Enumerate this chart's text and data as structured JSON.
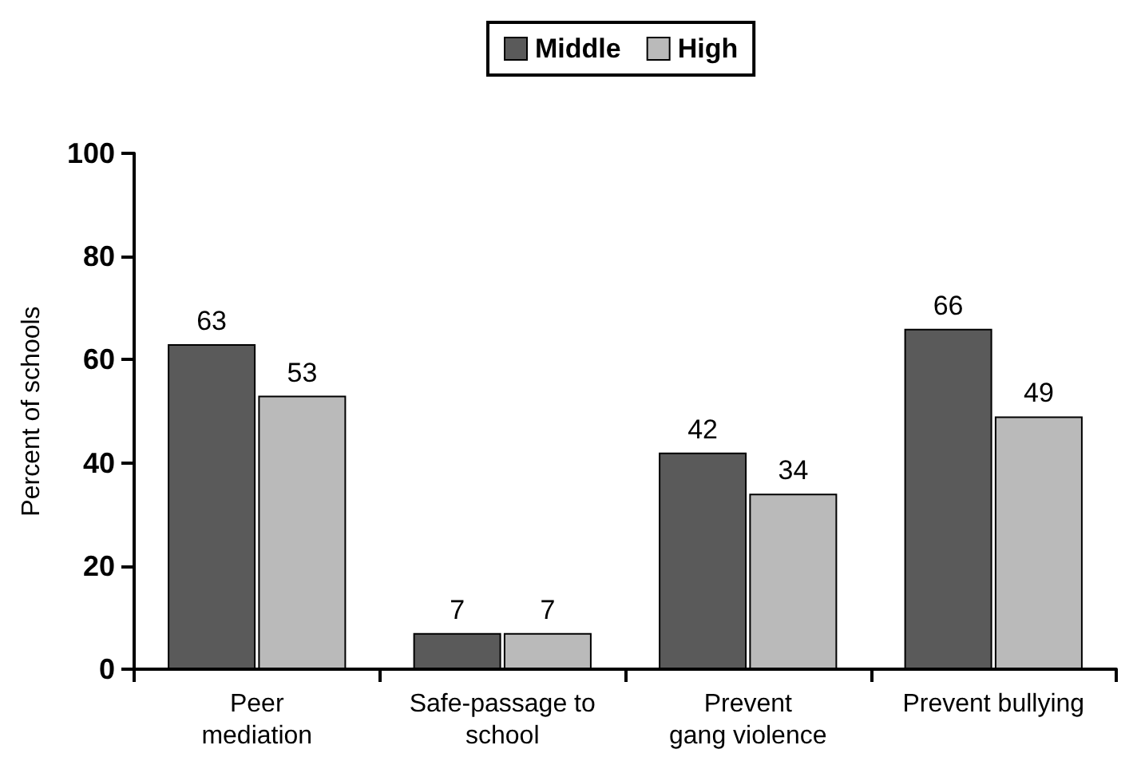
{
  "chart_data": {
    "type": "bar",
    "categories": [
      "Peer\nmediation",
      "Safe-passage to\nschool",
      "Prevent\ngang violence",
      "Prevent bullying"
    ],
    "series": [
      {
        "name": "Middle",
        "color": "#5a5a5a",
        "values": [
          63,
          7,
          42,
          66
        ]
      },
      {
        "name": "High",
        "color": "#bababa",
        "values": [
          53,
          7,
          34,
          49
        ]
      }
    ],
    "ylabel": "Percent of schools",
    "ylim": [
      0,
      100
    ],
    "yticks": [
      0,
      20,
      40,
      60,
      80,
      100
    ],
    "data_labels": true,
    "grid": false,
    "legend": "top"
  }
}
